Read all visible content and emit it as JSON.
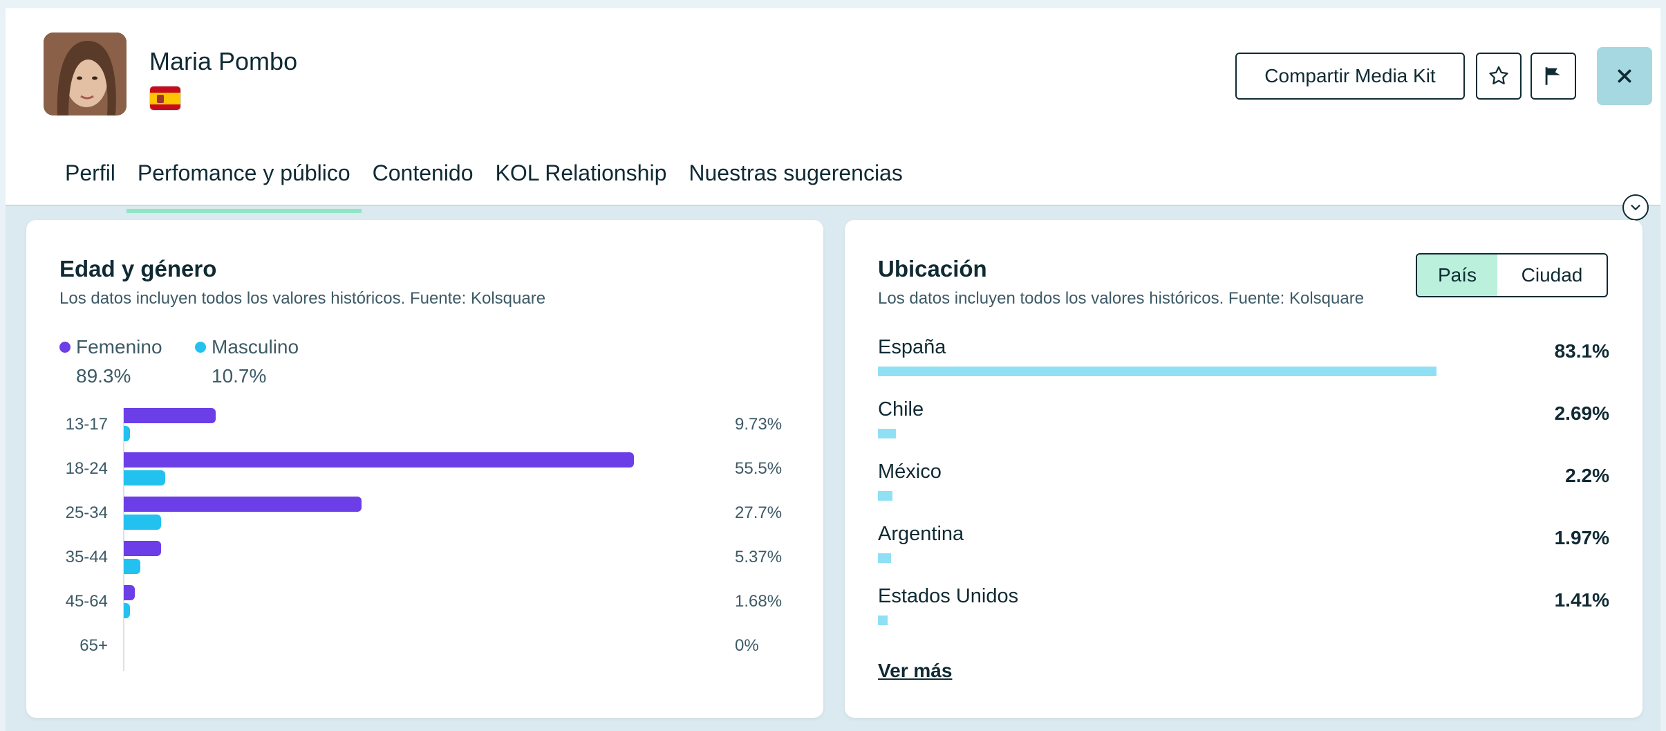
{
  "profile": {
    "name": "Maria Pombo",
    "country_flag": "spain-flag-icon"
  },
  "actions": {
    "share_label": "Compartir Media Kit",
    "favorite_icon": "star-icon",
    "report_icon": "flag-icon",
    "close_icon": "close-icon"
  },
  "tabs": [
    {
      "label": "Perfil",
      "active": false
    },
    {
      "label": "Perfomance y público",
      "active": true
    },
    {
      "label": "Contenido",
      "active": false
    },
    {
      "label": "KOL Relationship",
      "active": false
    },
    {
      "label": "Nuestras sugerencias",
      "active": false
    }
  ],
  "colors": {
    "female": "#6c3ee8",
    "male": "#22c1ef",
    "location_bar": "#90e0f5",
    "active_tab": "#8ee6c3",
    "close_bg": "#a6d8e1"
  },
  "age_gender": {
    "title": "Edad y género",
    "subtitle": "Los datos incluyen todos los valores históricos. Fuente: Kolsquare",
    "legend": [
      {
        "label": "Femenino",
        "value": "89.3%"
      },
      {
        "label": "Masculino",
        "value": "10.7%"
      }
    ],
    "rows": [
      {
        "range": "13-17",
        "pct": "9.73%"
      },
      {
        "range": "18-24",
        "pct": "55.5%"
      },
      {
        "range": "25-34",
        "pct": "27.7%"
      },
      {
        "range": "35-44",
        "pct": "5.37%"
      },
      {
        "range": "45-64",
        "pct": "1.68%"
      },
      {
        "range": "65+",
        "pct": "0%"
      }
    ]
  },
  "location": {
    "title": "Ubicación",
    "subtitle": "Los datos incluyen todos los valores históricos. Fuente: Kolsquare",
    "toggle": {
      "country": "País",
      "city": "Ciudad",
      "active": "País"
    },
    "items": [
      {
        "name": "España",
        "pct": "83.1%"
      },
      {
        "name": "Chile",
        "pct": "2.69%"
      },
      {
        "name": "México",
        "pct": "2.2%"
      },
      {
        "name": "Argentina",
        "pct": "1.97%"
      },
      {
        "name": "Estados Unidos",
        "pct": "1.41%"
      }
    ],
    "see_more": "Ver más"
  },
  "chart_data": [
    {
      "type": "bar",
      "title": "Edad y género",
      "categories": [
        "13-17",
        "18-24",
        "25-34",
        "35-44",
        "45-64",
        "65+"
      ],
      "series": [
        {
          "name": "Femenino",
          "values": [
            8.9,
            49.5,
            23.1,
            3.6,
            1.1,
            0
          ]
        },
        {
          "name": "Masculino",
          "values": [
            0.6,
            4.0,
            3.6,
            1.6,
            0.6,
            0
          ]
        }
      ],
      "totals": [
        9.73,
        55.5,
        27.7,
        5.37,
        1.68,
        0
      ],
      "orientation": "horizontal"
    },
    {
      "type": "bar",
      "title": "Ubicación",
      "categories": [
        "España",
        "Chile",
        "México",
        "Argentina",
        "Estados Unidos"
      ],
      "values": [
        83.1,
        2.69,
        2.2,
        1.97,
        1.41
      ],
      "orientation": "horizontal"
    }
  ]
}
